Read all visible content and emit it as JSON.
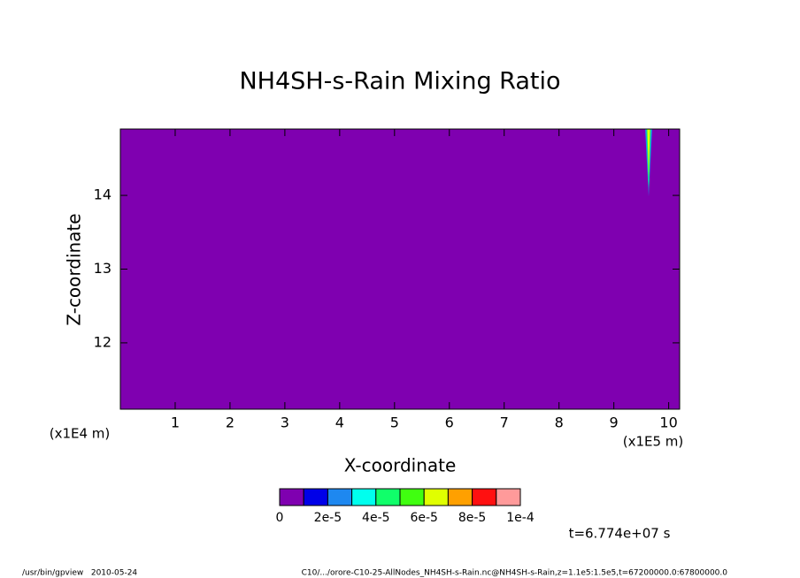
{
  "chart_data": {
    "type": "contour",
    "title": "NH4SH-s-Rain Mixing Ratio",
    "x_label": "X-coordinate",
    "y_label": "Z-coordinate",
    "x_unit": "(x1E5 m)",
    "y_unit": "(x1E4 m)",
    "xlim": [
      0,
      10.2
    ],
    "xticks": [
      1,
      2,
      3,
      4,
      5,
      6,
      7,
      8,
      9,
      10
    ],
    "ylim": [
      11.1,
      14.9
    ],
    "yticks": [
      12,
      13,
      14
    ],
    "levels": [
      0,
      1e-05,
      {
        "value": 2e-05,
        "label": "2e-5"
      },
      3e-05,
      {
        "value": 4e-05,
        "label": "4e-5"
      },
      5e-05,
      {
        "value": 6e-05,
        "label": "6e-5"
      },
      7e-05,
      {
        "value": 8e-05,
        "label": "8e-5"
      },
      9e-05,
      {
        "value": 0.0001,
        "label": "1e-4"
      }
    ],
    "colors": [
      "#7f00b0",
      "#0000e8",
      "#1e88f0",
      "#00ffee",
      "#10ff6a",
      "#40ff10",
      "#e0ff00",
      "#ffa000",
      "#ff1010",
      "#ff9a9a"
    ],
    "time_label": "t=6.774e+07 s",
    "footer_left": "/usr/bin/gpview   2010-05-24",
    "footer_right": "C10/.../orore-C10-25-AllNodes_NH4SH-s-Rain.nc@NH4SH-s-Rain,z=1.1e5:1.5e5,t=67200000.0:67800000.0"
  }
}
